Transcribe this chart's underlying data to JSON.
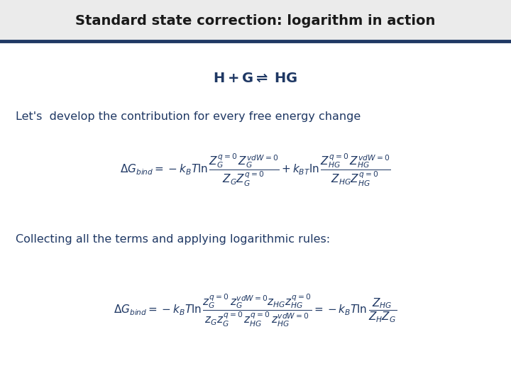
{
  "title": "Standard state correction: logarithm in action",
  "title_color": "#1a1a1a",
  "title_bg_color": "#ebebeb",
  "line_color": "#1f3864",
  "text_color": "#1f3864",
  "bg_color": "#ffffff",
  "subtitle": "Let's  develop the contribution for every free energy change",
  "collecting": "Collecting all the terms and applying logarithmic rules:"
}
